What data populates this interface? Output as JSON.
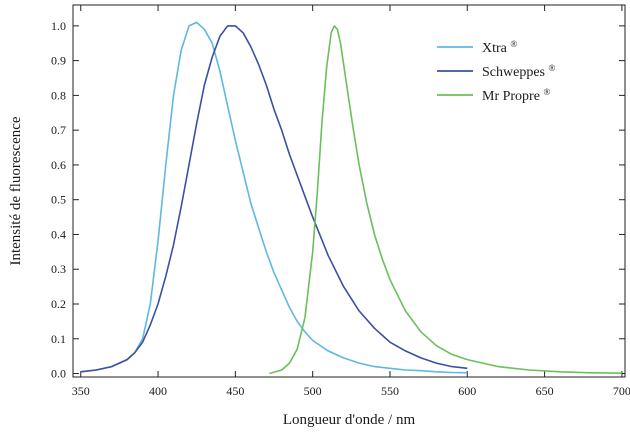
{
  "chart_data": {
    "type": "line",
    "title": "",
    "xlabel": "Longueur d'onde / nm",
    "ylabel": "Intensité de fluorescence",
    "xlim": [
      345,
      702
    ],
    "ylim": [
      -0.01,
      1.06
    ],
    "x_ticks": [
      350,
      400,
      450,
      500,
      550,
      600,
      650,
      700
    ],
    "y_ticks": [
      0.0,
      0.1,
      0.2,
      0.3,
      0.4,
      0.5,
      0.6,
      0.7,
      0.8,
      0.9,
      1.0
    ],
    "x_tick_labels": [
      "350",
      "400",
      "450",
      "500",
      "550",
      "600",
      "650",
      "700"
    ],
    "y_tick_labels": [
      "0.0",
      "0.1",
      "0.2",
      "0.3",
      "0.4",
      "0.5",
      "0.6",
      "0.7",
      "0.8",
      "0.9",
      "1.0"
    ],
    "grid": false,
    "legend_position": "top-right",
    "legend_mark": "®",
    "series": [
      {
        "name": "Xtra",
        "color": "#5fb8e2",
        "x": [
          350,
          360,
          370,
          380,
          385,
          390,
          395,
          400,
          405,
          410,
          415,
          420,
          425,
          430,
          435,
          440,
          445,
          450,
          455,
          460,
          465,
          470,
          475,
          480,
          485,
          490,
          495,
          500,
          510,
          520,
          530,
          540,
          550,
          560,
          570,
          580,
          590,
          600
        ],
        "y": [
          0.005,
          0.01,
          0.02,
          0.04,
          0.06,
          0.1,
          0.2,
          0.38,
          0.6,
          0.8,
          0.93,
          1.0,
          1.01,
          0.99,
          0.95,
          0.87,
          0.77,
          0.67,
          0.58,
          0.49,
          0.42,
          0.35,
          0.29,
          0.24,
          0.19,
          0.15,
          0.12,
          0.095,
          0.065,
          0.045,
          0.03,
          0.02,
          0.015,
          0.01,
          0.008,
          0.005,
          0.003,
          0.002
        ]
      },
      {
        "name": "Schweppes",
        "color": "#3d4fa3",
        "x": [
          350,
          360,
          370,
          380,
          385,
          390,
          395,
          400,
          405,
          410,
          415,
          420,
          425,
          430,
          435,
          440,
          445,
          450,
          455,
          460,
          465,
          470,
          475,
          480,
          485,
          490,
          495,
          500,
          510,
          520,
          530,
          540,
          550,
          560,
          570,
          580,
          590,
          600
        ],
        "y": [
          0.005,
          0.01,
          0.02,
          0.04,
          0.06,
          0.09,
          0.14,
          0.2,
          0.28,
          0.37,
          0.48,
          0.6,
          0.72,
          0.83,
          0.91,
          0.97,
          1.0,
          1.0,
          0.98,
          0.94,
          0.89,
          0.83,
          0.76,
          0.7,
          0.63,
          0.57,
          0.51,
          0.45,
          0.34,
          0.25,
          0.18,
          0.13,
          0.09,
          0.065,
          0.045,
          0.03,
          0.02,
          0.015
        ]
      },
      {
        "name": "Mr Propre",
        "color": "#6bbf5c",
        "x": [
          472,
          480,
          485,
          490,
          495,
          500,
          503,
          506,
          509,
          512,
          514,
          516,
          518,
          520,
          523,
          526,
          530,
          535,
          540,
          545,
          550,
          560,
          570,
          580,
          590,
          600,
          620,
          640,
          660,
          680,
          700
        ],
        "y": [
          0.0,
          0.01,
          0.03,
          0.07,
          0.16,
          0.35,
          0.52,
          0.72,
          0.88,
          0.98,
          1.0,
          0.99,
          0.95,
          0.89,
          0.8,
          0.71,
          0.6,
          0.49,
          0.4,
          0.33,
          0.27,
          0.18,
          0.12,
          0.08,
          0.055,
          0.04,
          0.02,
          0.01,
          0.005,
          0.002,
          0.001
        ]
      }
    ]
  }
}
